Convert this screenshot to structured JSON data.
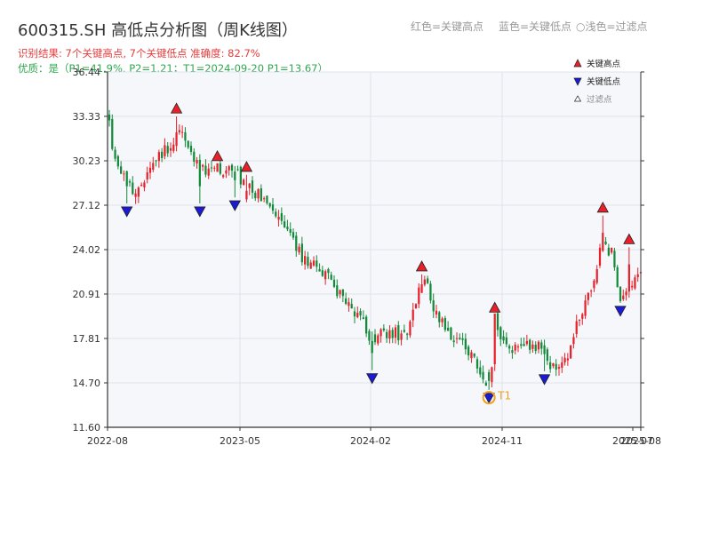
{
  "header": {
    "title": "600315.SH 高低点分析图（周K线图）",
    "status": "识别结果: 7个关键高点, 7个关键低点  准确度: 82.7%",
    "quality": "优质：是（P1=41.9%, P2=1.21；T1=2024-09-20 P1=13.67）",
    "key_red": "红色=关键高点",
    "key_blue": "蓝色=关键低点",
    "key_grey": "○浅色=过滤点"
  },
  "colors": {
    "up": "#e8202a",
    "down": "#138a3a",
    "high_marker": "#e8202a",
    "low_marker": "#1b1bd4",
    "t1_marker": "#f0a020",
    "plot_bg": "#f5f7fa",
    "grid": "#dfe3ea"
  },
  "chart_data": {
    "type": "candlestick",
    "series_frequency": "weekly",
    "ylim": [
      11.6,
      36.44
    ],
    "y_ticks": [
      "36.44",
      "33.33",
      "30.23",
      "27.12",
      "24.02",
      "20.91",
      "17.81",
      "14.70",
      "11.60"
    ],
    "x_ticks": [
      "2022-08",
      "2023-05",
      "2024-02",
      "2024-11",
      "2025-07",
      "2025-08"
    ],
    "path_points": [
      [
        0,
        32.8
      ],
      [
        2,
        30
      ],
      [
        5,
        29
      ],
      [
        8,
        28
      ],
      [
        11,
        28.6
      ],
      [
        14,
        29.3
      ],
      [
        17,
        30.5
      ],
      [
        20,
        31.2
      ],
      [
        22,
        31.8
      ],
      [
        24,
        32.2
      ],
      [
        26,
        31.9
      ],
      [
        28,
        31
      ],
      [
        30,
        30.1
      ],
      [
        32,
        29.7
      ],
      [
        35,
        29.6
      ],
      [
        37,
        29.8
      ],
      [
        40,
        29.3
      ],
      [
        43,
        29.7
      ],
      [
        45,
        29
      ],
      [
        48,
        28.3
      ],
      [
        51,
        27.8
      ],
      [
        54,
        27.1
      ],
      [
        57,
        26.3
      ],
      [
        60,
        25.5
      ],
      [
        63,
        24.6
      ],
      [
        66,
        23.5
      ],
      [
        69,
        23.1
      ],
      [
        72,
        22.8
      ],
      [
        75,
        22.2
      ],
      [
        78,
        21.2
      ],
      [
        81,
        20.3
      ],
      [
        84,
        19.5
      ],
      [
        87,
        19.1
      ],
      [
        89,
        17.8
      ],
      [
        91,
        17.4
      ],
      [
        93,
        18.1
      ],
      [
        96,
        18.3
      ],
      [
        99,
        18.1
      ],
      [
        102,
        18.2
      ],
      [
        105,
        20.4
      ],
      [
        107,
        21.7
      ],
      [
        108,
        22.3
      ],
      [
        110,
        20.3
      ],
      [
        113,
        19.1
      ],
      [
        116,
        18.3
      ],
      [
        119,
        17.8
      ],
      [
        122,
        17.3
      ],
      [
        125,
        16.6
      ],
      [
        127,
        15.4
      ],
      [
        129,
        14.9
      ],
      [
        130,
        14.6
      ],
      [
        131,
        15.8
      ],
      [
        132,
        19.1
      ],
      [
        134,
        17.7
      ],
      [
        137,
        17.1
      ],
      [
        140,
        16.9
      ],
      [
        143,
        17.4
      ],
      [
        145,
        17.4
      ],
      [
        148,
        17.3
      ],
      [
        151,
        15.8
      ],
      [
        153,
        15.6
      ],
      [
        155,
        16.1
      ],
      [
        157,
        16.8
      ],
      [
        160,
        18.6
      ],
      [
        163,
        20.2
      ],
      [
        166,
        21.5
      ],
      [
        168,
        24.4
      ],
      [
        170,
        24.2
      ],
      [
        172,
        23.9
      ],
      [
        175,
        20.7
      ],
      [
        177,
        21.2
      ],
      [
        179,
        21.8
      ],
      [
        181,
        22.5
      ]
    ],
    "key_highs": [
      {
        "index": 23,
        "price": 33.88
      },
      {
        "index": 37,
        "price": 30.55
      },
      {
        "index": 47,
        "price": 29.8
      },
      {
        "index": 107,
        "price": 22.84
      },
      {
        "index": 132,
        "price": 19.96
      },
      {
        "index": 169,
        "price": 26.95
      },
      {
        "index": 178,
        "price": 24.74
      }
    ],
    "key_lows": [
      {
        "index": 6,
        "price": 26.7
      },
      {
        "index": 31,
        "price": 26.7
      },
      {
        "index": 43,
        "price": 27.12
      },
      {
        "index": 90,
        "price": 15.04
      },
      {
        "index": 130,
        "price": 13.67
      },
      {
        "index": 149,
        "price": 14.97
      },
      {
        "index": 175,
        "price": 19.75
      }
    ],
    "t1": {
      "index": 130,
      "price": 13.67,
      "label": "T1"
    },
    "legend": [
      "关键高点",
      "关键低点",
      "过滤点"
    ]
  }
}
